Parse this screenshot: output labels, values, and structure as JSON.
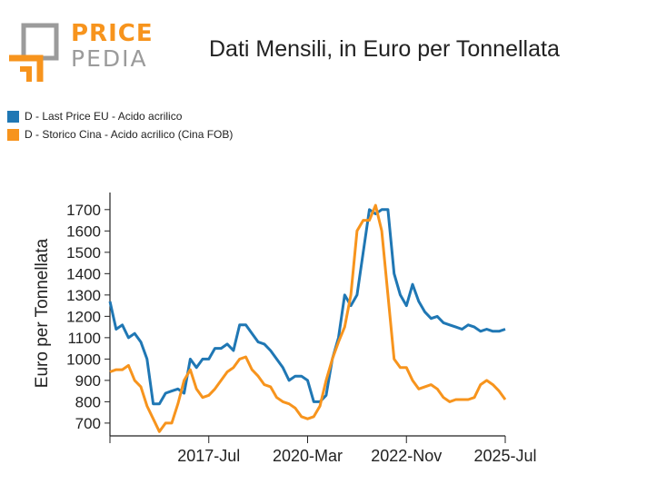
{
  "brand": {
    "word_1": "PRICE",
    "word_2": "PEDIA",
    "accent_color": "#f7941d",
    "mark_color": "#9b9b9b"
  },
  "chart_data": {
    "type": "line",
    "title": "Dati Mensili, in Euro per Tonnellata",
    "xlabel": "",
    "ylabel": "Euro per Tonnellata",
    "x_tick_labels": [
      "2017-Jul",
      "2020-Mar",
      "2022-Nov",
      "2025-Jul"
    ],
    "x_tick_positions": [
      "2017-07",
      "2020-03",
      "2022-11",
      "2025-07"
    ],
    "y_ticks": [
      700,
      800,
      900,
      1000,
      1100,
      1200,
      1300,
      1400,
      1500,
      1600,
      1700
    ],
    "ylim": [
      640,
      1780
    ],
    "xlim": [
      "2014-11",
      "2025-07"
    ],
    "grid": false,
    "legend_position": "top-left",
    "series": [
      {
        "name": "D - Last Price EU - Acido acrilico",
        "color": "#1f77b4",
        "x": [
          "2014-11",
          "2015-01",
          "2015-03",
          "2015-05",
          "2015-07",
          "2015-09",
          "2015-11",
          "2016-01",
          "2016-03",
          "2016-05",
          "2016-07",
          "2016-09",
          "2016-11",
          "2017-01",
          "2017-03",
          "2017-05",
          "2017-07",
          "2017-09",
          "2017-11",
          "2018-01",
          "2018-03",
          "2018-05",
          "2018-07",
          "2018-09",
          "2018-11",
          "2019-01",
          "2019-03",
          "2019-05",
          "2019-07",
          "2019-09",
          "2019-11",
          "2020-01",
          "2020-03",
          "2020-05",
          "2020-07",
          "2020-09",
          "2020-11",
          "2021-01",
          "2021-03",
          "2021-05",
          "2021-07",
          "2021-09",
          "2021-11",
          "2022-01",
          "2022-03",
          "2022-05",
          "2022-07",
          "2022-09",
          "2022-11",
          "2023-01",
          "2023-03",
          "2023-05",
          "2023-07",
          "2023-09",
          "2023-11",
          "2024-01",
          "2024-03",
          "2024-05",
          "2024-07",
          "2024-09",
          "2024-11",
          "2025-01",
          "2025-03",
          "2025-05",
          "2025-07"
        ],
        "values": [
          1270,
          1140,
          1160,
          1100,
          1120,
          1080,
          1000,
          790,
          790,
          840,
          850,
          860,
          840,
          1000,
          960,
          1000,
          1000,
          1050,
          1050,
          1070,
          1040,
          1160,
          1160,
          1120,
          1080,
          1070,
          1040,
          1000,
          960,
          900,
          920,
          920,
          900,
          800,
          800,
          830,
          1000,
          1100,
          1300,
          1250,
          1300,
          1500,
          1700,
          1680,
          1700,
          1700,
          1400,
          1300,
          1250,
          1350,
          1270,
          1220,
          1190,
          1200,
          1170,
          1160,
          1150,
          1140,
          1160,
          1150,
          1130,
          1140,
          1130,
          1130,
          1140
        ]
      },
      {
        "name": "D - Storico Cina - Acido acrilico (Cina FOB)",
        "color": "#f7941d",
        "x": [
          "2014-11",
          "2015-01",
          "2015-03",
          "2015-05",
          "2015-07",
          "2015-09",
          "2015-11",
          "2016-01",
          "2016-03",
          "2016-05",
          "2016-07",
          "2016-09",
          "2016-11",
          "2017-01",
          "2017-03",
          "2017-05",
          "2017-07",
          "2017-09",
          "2017-11",
          "2018-01",
          "2018-03",
          "2018-05",
          "2018-07",
          "2018-09",
          "2018-11",
          "2019-01",
          "2019-03",
          "2019-05",
          "2019-07",
          "2019-09",
          "2019-11",
          "2020-01",
          "2020-03",
          "2020-05",
          "2020-07",
          "2020-09",
          "2020-11",
          "2021-01",
          "2021-03",
          "2021-05",
          "2021-07",
          "2021-09",
          "2021-11",
          "2022-01",
          "2022-03",
          "2022-05",
          "2022-07",
          "2022-09",
          "2022-11",
          "2023-01",
          "2023-03",
          "2023-05",
          "2023-07",
          "2023-09",
          "2023-11",
          "2024-01",
          "2024-03",
          "2024-05",
          "2024-07",
          "2024-09",
          "2024-11",
          "2025-01",
          "2025-03",
          "2025-05",
          "2025-07"
        ],
        "values": [
          940,
          950,
          950,
          970,
          900,
          870,
          780,
          720,
          660,
          700,
          700,
          790,
          900,
          950,
          860,
          820,
          830,
          860,
          900,
          940,
          960,
          1000,
          1010,
          950,
          920,
          880,
          870,
          820,
          800,
          790,
          770,
          730,
          720,
          730,
          780,
          900,
          1000,
          1080,
          1150,
          1300,
          1600,
          1650,
          1650,
          1720,
          1600,
          1300,
          1000,
          960,
          960,
          900,
          860,
          870,
          880,
          860,
          820,
          800,
          810,
          810,
          810,
          820,
          880,
          900,
          880,
          850,
          810
        ]
      }
    ]
  }
}
